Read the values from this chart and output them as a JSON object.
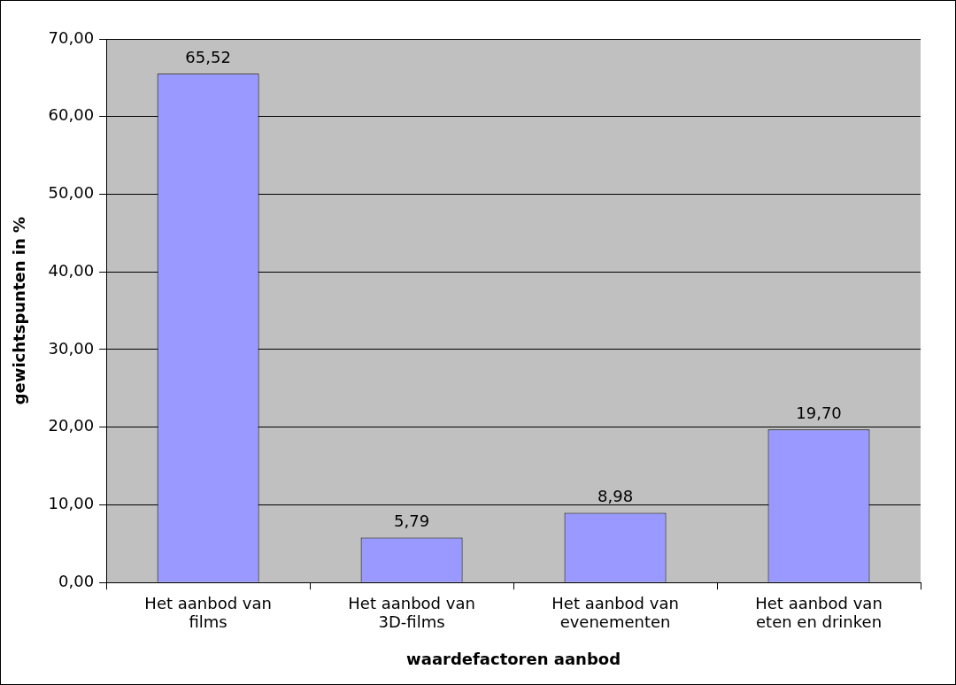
{
  "chart_data": {
    "type": "bar",
    "xlabel": "waardefactoren aanbod",
    "ylabel": "gewichtspunten in %",
    "categories": [
      "Het aanbod van films",
      "Het aanbod van 3D-films",
      "Het aanbod van evenementen",
      "Het aanbod van eten en drinken"
    ],
    "values": [
      65.52,
      5.79,
      8.98,
      19.7
    ],
    "value_labels": [
      "65,52",
      "5,79",
      "8,98",
      "19,70"
    ],
    "color": "#9999ff",
    "ylim": [
      0,
      70
    ],
    "yticks": [
      {
        "value": 0,
        "label": "0,00"
      },
      {
        "value": 10,
        "label": "10,00"
      },
      {
        "value": 20,
        "label": "20,00"
      },
      {
        "value": 30,
        "label": "30,00"
      },
      {
        "value": 40,
        "label": "40,00"
      },
      {
        "value": 50,
        "label": "50,00"
      },
      {
        "value": 60,
        "label": "60,00"
      },
      {
        "value": 70,
        "label": "70,00"
      }
    ],
    "grid": "y",
    "legend": false
  }
}
